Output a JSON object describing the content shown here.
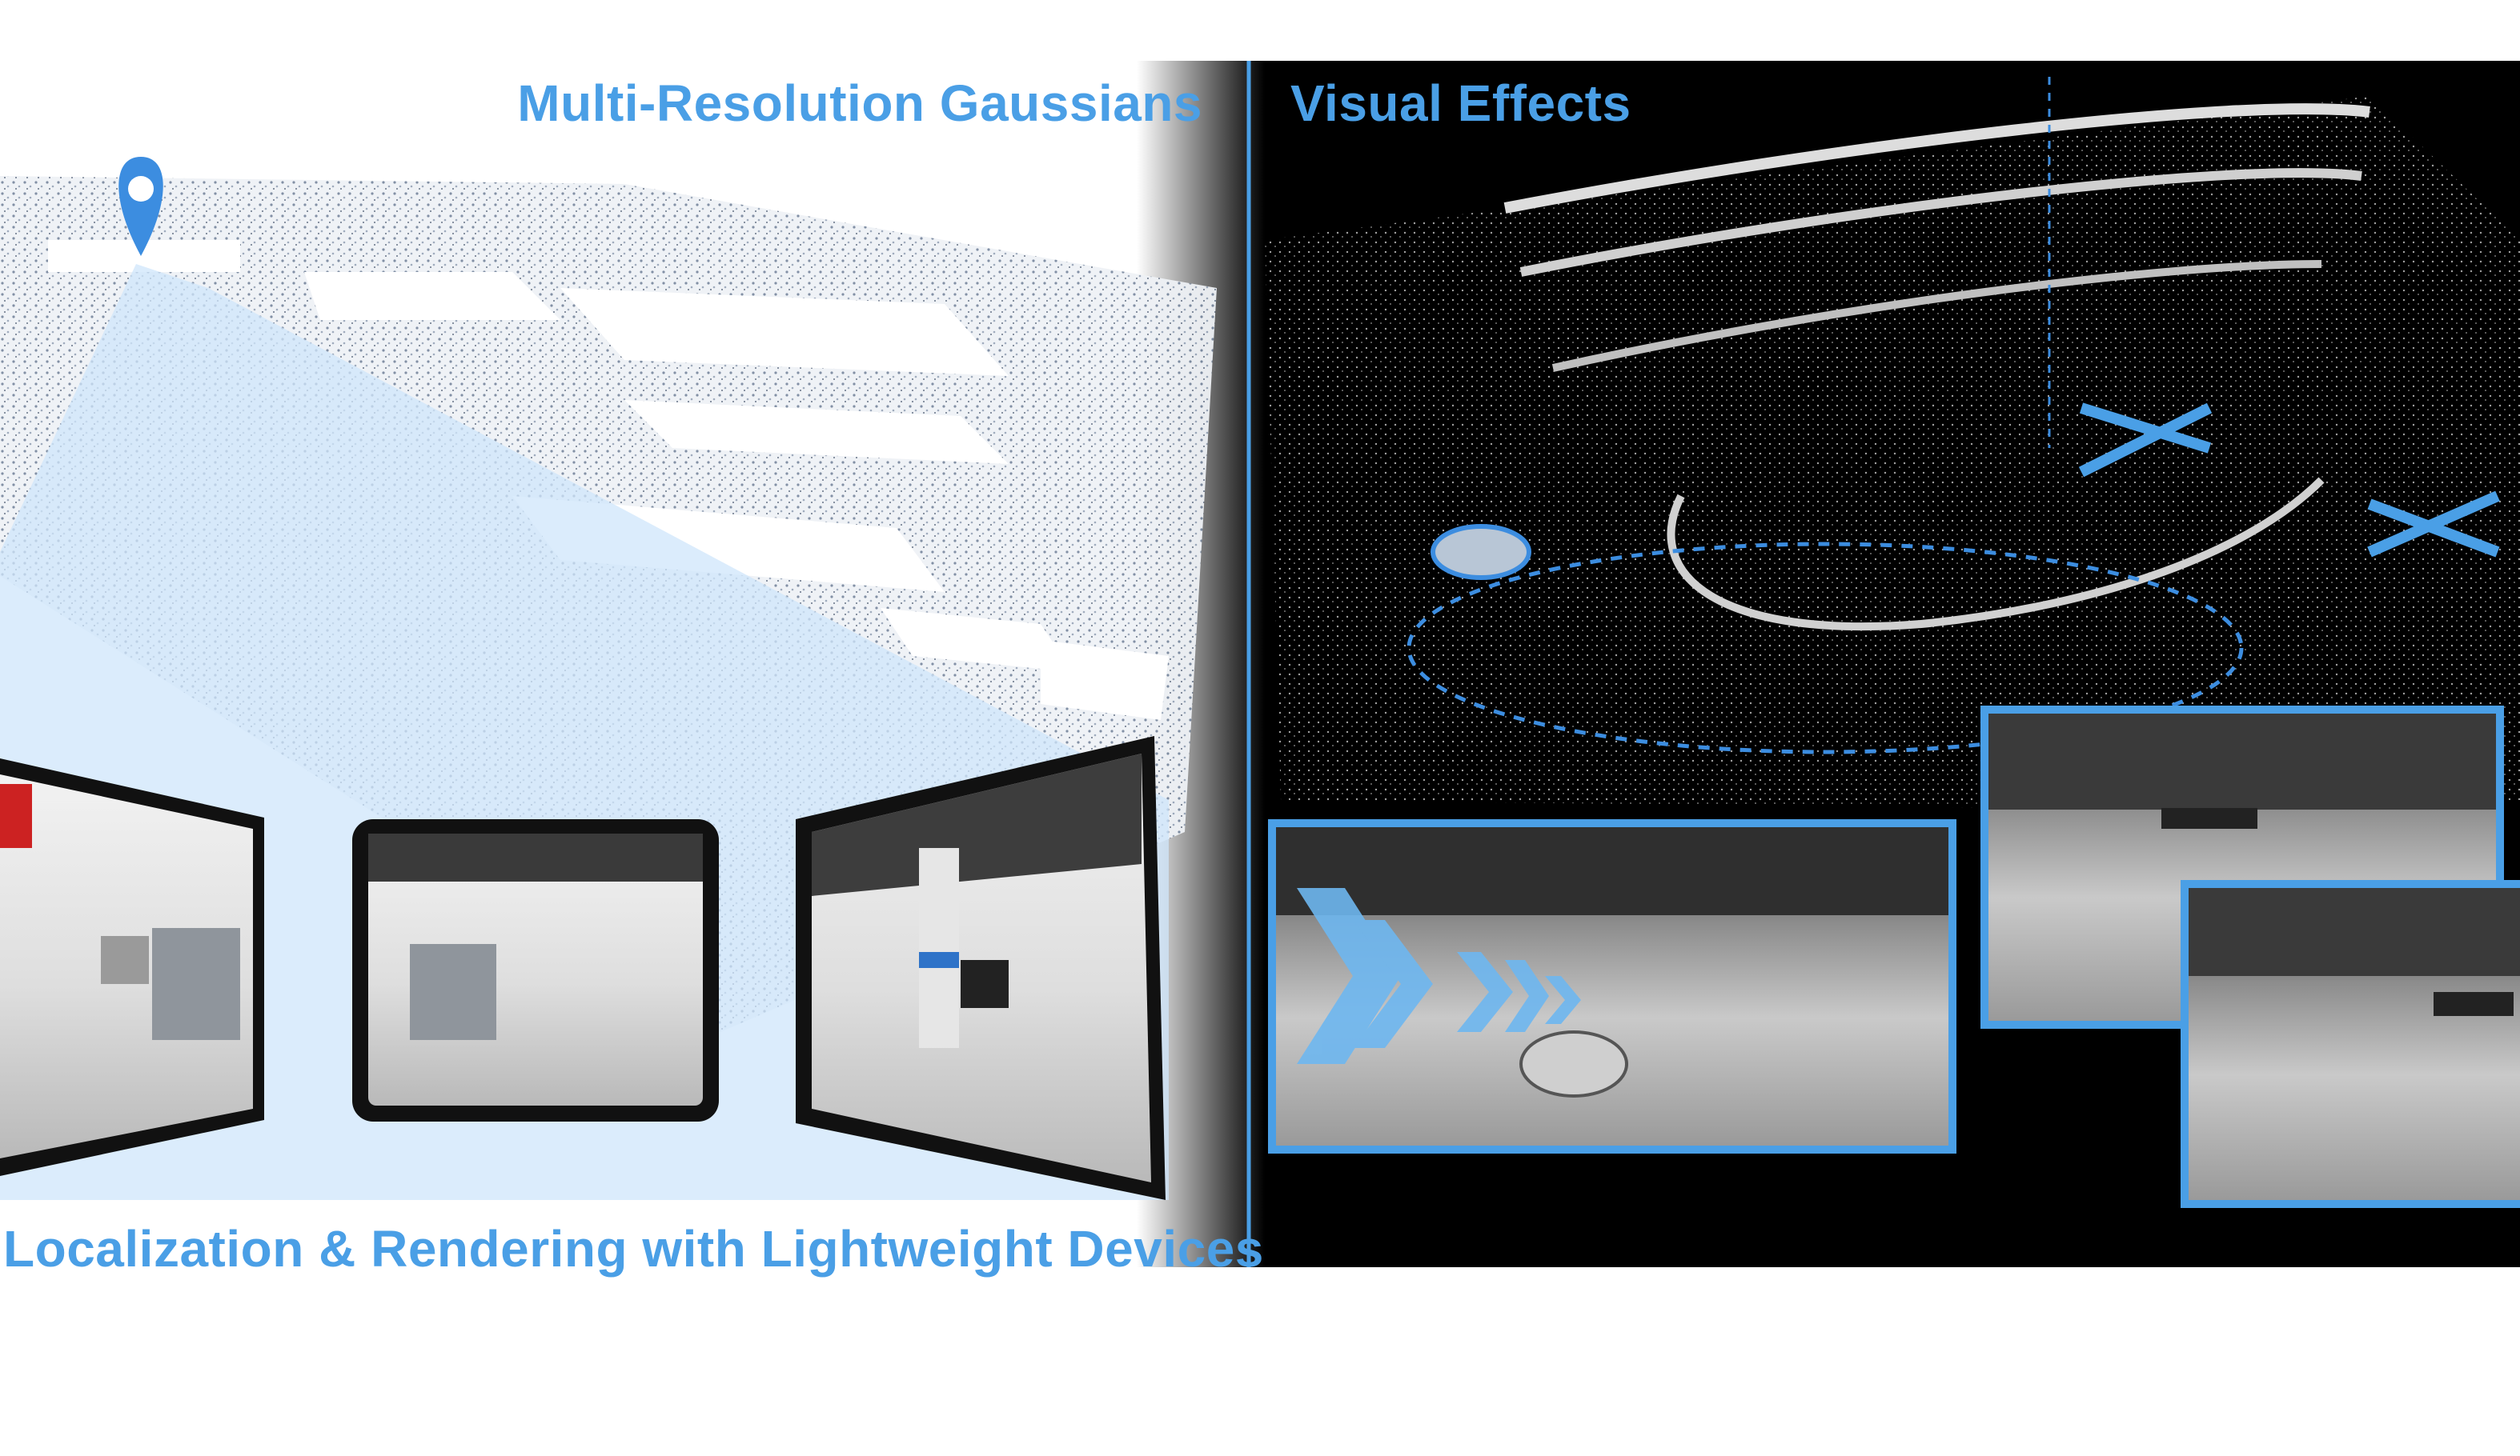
{
  "labels": {
    "multi_resolution": "Multi-Resolution Gaussians",
    "visual_effects": "Visual Effects",
    "localization": "Localization & Rendering with Lightweight Devices"
  },
  "colors": {
    "accent": "#4a9fe6",
    "pin": "#3c8de0",
    "frustum": "#cfe6fb",
    "dark_panel": "#000000",
    "device_bezel": "#111111"
  },
  "icons": [
    "location-pin-icon",
    "chevron-arrow-icon",
    "car-icon",
    "drone-icon"
  ]
}
